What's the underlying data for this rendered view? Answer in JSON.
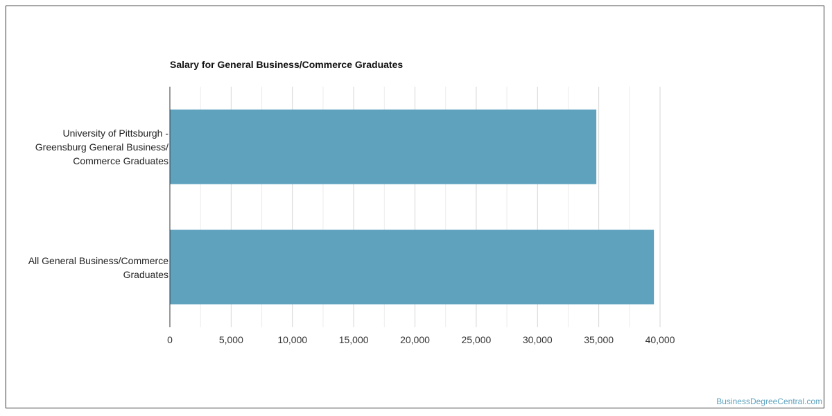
{
  "chart_data": {
    "type": "bar",
    "orientation": "horizontal",
    "title": "Salary for General Business/Commerce Graduates",
    "categories": [
      "University of Pittsburgh -\nGreensburg General Business/\nCommerce Graduates",
      "All General Business/Commerce\nGraduates"
    ],
    "values": [
      34800,
      39500
    ],
    "xlim": [
      0,
      40000
    ],
    "x_ticks": [
      "0",
      "5,000",
      "10,000",
      "15,000",
      "20,000",
      "25,000",
      "30,000",
      "35,000",
      "40,000"
    ],
    "grid": true,
    "colors": {
      "bar": "#5ea2be",
      "grid": "#dddddd",
      "axis": "#333333"
    }
  },
  "footer": {
    "source": "BusinessDegreeCentral.com"
  }
}
